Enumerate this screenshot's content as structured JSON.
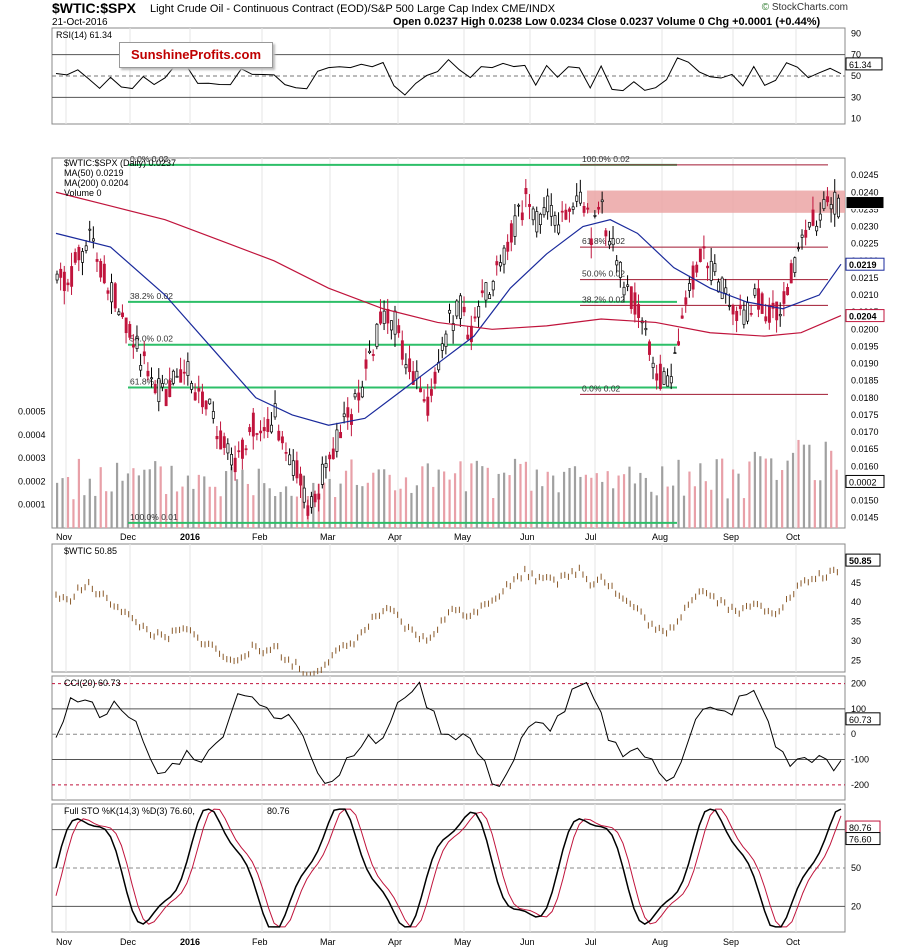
{
  "header": {
    "symbol": "$WTIC:$SPX",
    "subtitle": "Light Crude Oil - Continuous Contract (EOD)/S&P 500 Large Cap Index  CME/INDX",
    "date": "21-Oct-2016",
    "ohlc": "Open 0.0237   High 0.0238   Low 0.0234   Close 0.0237   Volume 0   Chg +0.0001 (+0.44%)",
    "credit": "StockCharts.com",
    "credit_symbol": "©",
    "brand": "SunshineProfits.com"
  },
  "colors": {
    "price_up": "#000000",
    "price_down": "#c0143c",
    "ma50": "#1a2a9c",
    "ma200": "#c0143c",
    "fib_green": "#2dbf68",
    "resistance_zone": "#eba5a5",
    "wtic": "#8a5a2a",
    "volume_up": "#a0a0a0",
    "volume_down": "#e8a0a8",
    "cci_fill_pos": "#5d7a5a",
    "cci_fill_neg": "#9a6e6a"
  },
  "months": [
    "Nov",
    "Dec",
    "2016",
    "Feb",
    "Mar",
    "Apr",
    "May",
    "Jun",
    "Jul",
    "Aug",
    "Sep",
    "Oct"
  ],
  "legend": {
    "price": "$WTIC:$SPX (Daily) 0.0237",
    "ma50": "MA(50) 0.0219",
    "ma200": "MA(200) 0.0204",
    "volume": "Volume 0"
  },
  "fib_labels": {
    "left": [
      "0.0% 0.02",
      "38.2% 0.02",
      "50.0% 0.02",
      "61.8% 0.02",
      "100.0% 0.01"
    ],
    "right": [
      "100.0% 0.02",
      "61.8% 0.02",
      "50.0% 0.02",
      "38.2% 0.02",
      "0.0% 0.02"
    ]
  },
  "price_badges": [
    "0.0237",
    "0.0219",
    "0.0204"
  ],
  "rsi": {
    "label": "RSI(14) 61.34",
    "badge": "61.34"
  },
  "wtic": {
    "label": "$WTIC 50.85",
    "badge": "50.85"
  },
  "cci": {
    "label": "CCI(20) 60.73",
    "badge": "60.73"
  },
  "sto": {
    "label_k": "Full STO %K(14,3) %D(3) 76.60,",
    "label_d": "80.76",
    "badge_k": "80.76",
    "badge_d": "76.60"
  },
  "vol_badge": "0.0002",
  "chart_data": {
    "type": "line",
    "title": "$WTIC:$SPX",
    "price_axis": {
      "ticks": [
        0.0145,
        0.015,
        0.0155,
        0.016,
        0.0165,
        0.017,
        0.0175,
        0.018,
        0.0185,
        0.019,
        0.0195,
        0.02,
        0.0205,
        0.021,
        0.0215,
        0.022,
        0.0225,
        0.023,
        0.0235,
        0.024,
        0.0245
      ]
    },
    "volume_axis": {
      "ticks": [
        0.0001,
        0.0002,
        0.0003,
        0.0004,
        0.0005
      ]
    },
    "rsi_axis": {
      "ticks": [
        10,
        30,
        50,
        70,
        90
      ]
    },
    "wtic_axis": {
      "ticks": [
        25,
        30,
        35,
        40,
        45,
        50
      ]
    },
    "cci_axis": {
      "ticks": [
        -200,
        -100,
        0,
        100,
        200
      ]
    },
    "sto_axis": {
      "ticks": [
        20,
        50,
        80
      ]
    },
    "price_path": [
      [
        0,
        0.0218
      ],
      [
        6,
        0.0212
      ],
      [
        12,
        0.0222
      ],
      [
        18,
        0.0226
      ],
      [
        24,
        0.0218
      ],
      [
        30,
        0.0212
      ],
      [
        36,
        0.0206
      ],
      [
        42,
        0.0196
      ],
      [
        48,
        0.019
      ],
      [
        54,
        0.0184
      ],
      [
        60,
        0.018
      ],
      [
        66,
        0.0186
      ],
      [
        72,
        0.0188
      ],
      [
        78,
        0.018
      ],
      [
        84,
        0.0176
      ],
      [
        90,
        0.0168
      ],
      [
        96,
        0.016
      ],
      [
        102,
        0.0166
      ],
      [
        108,
        0.0172
      ],
      [
        114,
        0.0168
      ],
      [
        120,
        0.0176
      ],
      [
        126,
        0.0162
      ],
      [
        132,
        0.0158
      ],
      [
        138,
        0.0148
      ],
      [
        144,
        0.0154
      ],
      [
        150,
        0.0162
      ],
      [
        156,
        0.017
      ],
      [
        162,
        0.0176
      ],
      [
        168,
        0.0184
      ],
      [
        174,
        0.0196
      ],
      [
        180,
        0.0204
      ],
      [
        186,
        0.0202
      ],
      [
        192,
        0.019
      ],
      [
        198,
        0.0184
      ],
      [
        204,
        0.0178
      ],
      [
        210,
        0.019
      ],
      [
        216,
        0.0202
      ],
      [
        222,
        0.0206
      ],
      [
        228,
        0.0198
      ],
      [
        234,
        0.021
      ],
      [
        240,
        0.0214
      ],
      [
        246,
        0.0222
      ],
      [
        252,
        0.023
      ],
      [
        258,
        0.0238
      ],
      [
        264,
        0.0232
      ],
      [
        270,
        0.0236
      ],
      [
        276,
        0.023
      ],
      [
        282,
        0.0234
      ],
      [
        288,
        0.024
      ],
      [
        294,
        0.0228
      ],
      [
        300,
        0.0234
      ],
      [
        306,
        0.0224
      ],
      [
        312,
        0.0214
      ],
      [
        318,
        0.0208
      ],
      [
        324,
        0.0198
      ],
      [
        330,
        0.0188
      ],
      [
        336,
        0.0184
      ],
      [
        342,
        0.0196
      ],
      [
        348,
        0.0212
      ],
      [
        354,
        0.0222
      ],
      [
        360,
        0.0218
      ],
      [
        366,
        0.0212
      ],
      [
        372,
        0.0206
      ],
      [
        378,
        0.0204
      ],
      [
        384,
        0.021
      ],
      [
        390,
        0.0206
      ],
      [
        396,
        0.0204
      ],
      [
        402,
        0.0212
      ],
      [
        408,
        0.0224
      ],
      [
        414,
        0.023
      ],
      [
        420,
        0.0234
      ],
      [
        426,
        0.0236
      ],
      [
        432,
        0.0237
      ]
    ],
    "series": [
      {
        "name": "MA(50)",
        "values": [
          [
            0,
            0.0228
          ],
          [
            30,
            0.0224
          ],
          [
            60,
            0.021
          ],
          [
            90,
            0.0192
          ],
          [
            110,
            0.018
          ],
          [
            130,
            0.0175
          ],
          [
            150,
            0.0172
          ],
          [
            170,
            0.0174
          ],
          [
            190,
            0.0182
          ],
          [
            210,
            0.019
          ],
          [
            230,
            0.0198
          ],
          [
            250,
            0.0212
          ],
          [
            270,
            0.0222
          ],
          [
            290,
            0.023
          ],
          [
            305,
            0.0232
          ],
          [
            320,
            0.0228
          ],
          [
            340,
            0.0218
          ],
          [
            360,
            0.0212
          ],
          [
            380,
            0.0208
          ],
          [
            400,
            0.0206
          ],
          [
            420,
            0.021
          ],
          [
            432,
            0.0219
          ]
        ]
      },
      {
        "name": "MA(200)",
        "values": [
          [
            0,
            0.024
          ],
          [
            30,
            0.0236
          ],
          [
            60,
            0.0232
          ],
          [
            90,
            0.0226
          ],
          [
            120,
            0.022
          ],
          [
            150,
            0.0212
          ],
          [
            180,
            0.0206
          ],
          [
            210,
            0.0202
          ],
          [
            240,
            0.02
          ],
          [
            270,
            0.0201
          ],
          [
            300,
            0.0203
          ],
          [
            330,
            0.0202
          ],
          [
            360,
            0.0199
          ],
          [
            390,
            0.0198
          ],
          [
            410,
            0.0199
          ],
          [
            432,
            0.0204
          ]
        ]
      }
    ]
  }
}
